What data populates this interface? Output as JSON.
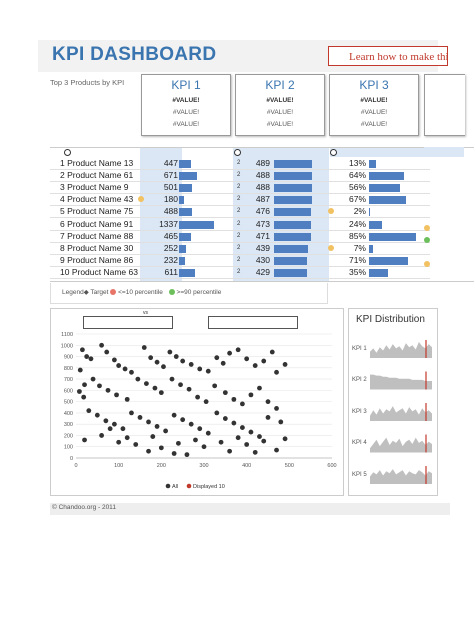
{
  "header": {
    "title": "KPI DASHBOARD",
    "learn_label": "Learn how to make this d"
  },
  "subtitle": "Top 3 Products by KPI",
  "kpi_cards": [
    {
      "title": "KPI 1",
      "values": [
        "#VALUE!",
        "#VALUE!",
        "#VALUE!"
      ]
    },
    {
      "title": "KPI 2",
      "values": [
        "#VALUE!",
        "#VALUE!",
        "#VALUE!"
      ]
    },
    {
      "title": "KPI 3",
      "values": [
        "#VALUE!",
        "#VALUE!",
        "#VALUE!"
      ]
    }
  ],
  "products": [
    {
      "name": "1 Product Name 13",
      "k1": 447,
      "k2": 489,
      "k3": "13%",
      "rank": "2",
      "m1": null,
      "m3": null
    },
    {
      "name": "2 Product Name 61",
      "k1": 671,
      "k2": 488,
      "k3": "64%",
      "rank": "2",
      "m1": null,
      "m3": null
    },
    {
      "name": "3 Product Name 9",
      "k1": 501,
      "k2": 488,
      "k3": "56%",
      "rank": "2",
      "m1": null,
      "m3": null
    },
    {
      "name": "4 Product Name 43",
      "k1": 180,
      "k2": 487,
      "k3": "67%",
      "rank": "2",
      "m1": "orange",
      "m3": null
    },
    {
      "name": "5 Product Name 75",
      "k1": 488,
      "k2": 476,
      "k3": "2%",
      "rank": "2",
      "m1": null,
      "m3": "orange"
    },
    {
      "name": "6 Product Name 91",
      "k1": 1337,
      "k2": 473,
      "k3": "24%",
      "rank": "2",
      "m1": null,
      "m3": null
    },
    {
      "name": "7 Product Name 88",
      "k1": 465,
      "k2": 471,
      "k3": "85%",
      "rank": "2",
      "m1": null,
      "m3": null
    },
    {
      "name": "8 Product Name 30",
      "k1": 252,
      "k2": 439,
      "k3": "7%",
      "rank": "2",
      "m1": null,
      "m3": "orange"
    },
    {
      "name": "9 Product Name 86",
      "k1": 232,
      "k2": 430,
      "k3": "71%",
      "rank": "2",
      "m1": null,
      "m3": null
    },
    {
      "name": "10 Product Name 63",
      "k1": 611,
      "k2": 429,
      "k3": "35%",
      "rank": "2",
      "m1": null,
      "m3": null
    }
  ],
  "k3_fractions": [
    0.13,
    0.64,
    0.56,
    0.67,
    0.02,
    0.24,
    0.85,
    0.07,
    0.71,
    0.35
  ],
  "legend": {
    "label": "Legend",
    "target": "Target",
    "low": "<=10 percentile",
    "high": ">=90 percentile"
  },
  "colors": {
    "accent": "#3a75b0",
    "bar": "#4f7fc0",
    "low_marker": "#e8756a",
    "high_marker": "#6cbf5a",
    "target_marker": "#f2c162",
    "highlight": "#c0392b"
  },
  "scatter": {
    "vs_label": "vs",
    "legend_all": "All",
    "legend_displayed": "Displayed 10",
    "x_ticks": [
      "0",
      "100",
      "200",
      "300",
      "400",
      "500",
      "600"
    ],
    "y_ticks": [
      "0",
      "100",
      "200",
      "300",
      "400",
      "500",
      "600",
      "700",
      "800",
      "900",
      "1000",
      "1100"
    ],
    "xlim": [
      0,
      600
    ],
    "ylim": [
      0,
      1100
    ],
    "points": [
      [
        15,
        960
      ],
      [
        25,
        900
      ],
      [
        35,
        880
      ],
      [
        10,
        780
      ],
      [
        20,
        650
      ],
      [
        8,
        590
      ],
      [
        18,
        540
      ],
      [
        60,
        1000
      ],
      [
        72,
        940
      ],
      [
        90,
        870
      ],
      [
        100,
        820
      ],
      [
        115,
        790
      ],
      [
        130,
        760
      ],
      [
        160,
        980
      ],
      [
        175,
        890
      ],
      [
        190,
        850
      ],
      [
        205,
        810
      ],
      [
        220,
        940
      ],
      [
        235,
        900
      ],
      [
        250,
        860
      ],
      [
        270,
        830
      ],
      [
        290,
        790
      ],
      [
        310,
        770
      ],
      [
        330,
        890
      ],
      [
        345,
        840
      ],
      [
        360,
        930
      ],
      [
        380,
        960
      ],
      [
        400,
        880
      ],
      [
        420,
        820
      ],
      [
        440,
        860
      ],
      [
        460,
        940
      ],
      [
        470,
        760
      ],
      [
        490,
        830
      ],
      [
        40,
        700
      ],
      [
        55,
        640
      ],
      [
        75,
        600
      ],
      [
        95,
        560
      ],
      [
        120,
        520
      ],
      [
        145,
        700
      ],
      [
        165,
        660
      ],
      [
        185,
        620
      ],
      [
        200,
        580
      ],
      [
        225,
        700
      ],
      [
        245,
        650
      ],
      [
        265,
        610
      ],
      [
        285,
        540
      ],
      [
        305,
        500
      ],
      [
        325,
        640
      ],
      [
        350,
        580
      ],
      [
        370,
        520
      ],
      [
        390,
        480
      ],
      [
        410,
        560
      ],
      [
        430,
        620
      ],
      [
        450,
        500
      ],
      [
        470,
        440
      ],
      [
        30,
        420
      ],
      [
        50,
        380
      ],
      [
        70,
        330
      ],
      [
        90,
        300
      ],
      [
        110,
        260
      ],
      [
        130,
        400
      ],
      [
        150,
        360
      ],
      [
        170,
        320
      ],
      [
        190,
        280
      ],
      [
        210,
        240
      ],
      [
        230,
        380
      ],
      [
        250,
        340
      ],
      [
        270,
        300
      ],
      [
        290,
        260
      ],
      [
        310,
        220
      ],
      [
        330,
        400
      ],
      [
        350,
        350
      ],
      [
        370,
        310
      ],
      [
        390,
        270
      ],
      [
        410,
        230
      ],
      [
        430,
        190
      ],
      [
        450,
        360
      ],
      [
        480,
        320
      ],
      [
        20,
        160
      ],
      [
        60,
        200
      ],
      [
        100,
        140
      ],
      [
        140,
        120
      ],
      [
        170,
        60
      ],
      [
        200,
        90
      ],
      [
        240,
        130
      ],
      [
        260,
        30
      ],
      [
        280,
        160
      ],
      [
        300,
        100
      ],
      [
        340,
        140
      ],
      [
        360,
        60
      ],
      [
        380,
        180
      ],
      [
        400,
        120
      ],
      [
        420,
        50
      ],
      [
        440,
        150
      ],
      [
        470,
        70
      ],
      [
        490,
        170
      ],
      [
        230,
        40
      ],
      [
        180,
        190
      ],
      [
        120,
        180
      ],
      [
        80,
        260
      ]
    ]
  },
  "distribution": {
    "title": "KPI Distribution",
    "labels": [
      "KPI 1",
      "KPI 2",
      "KPI 3",
      "KPI 4",
      "KPI 5"
    ]
  },
  "footer": "© Chandoo.org - 2011"
}
